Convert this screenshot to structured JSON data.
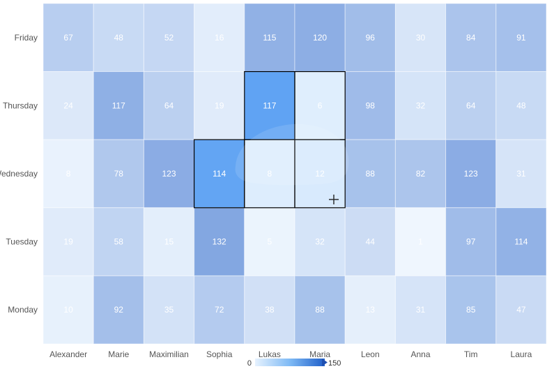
{
  "chart_data": {
    "type": "heatmap",
    "title": "",
    "xlabel": "",
    "ylabel": "",
    "x_categories": [
      "Alexander",
      "Marie",
      "Maximilian",
      "Sophia",
      "Lukas",
      "Maria",
      "Leon",
      "Anna",
      "Tim",
      "Laura"
    ],
    "y_categories": [
      "Friday",
      "Thursday",
      "Wednesday",
      "Tuesday",
      "Monday"
    ],
    "values": [
      [
        67,
        48,
        52,
        16,
        115,
        120,
        96,
        30,
        84,
        91
      ],
      [
        24,
        117,
        64,
        19,
        117,
        6,
        98,
        32,
        64,
        48
      ],
      [
        8,
        78,
        123,
        114,
        8,
        12,
        88,
        82,
        123,
        31
      ],
      [
        19,
        58,
        15,
        132,
        5,
        32,
        44,
        1,
        97,
        114
      ],
      [
        10,
        92,
        35,
        72,
        38,
        88,
        13,
        31,
        85,
        47
      ]
    ],
    "color_range": [
      0,
      150
    ],
    "colors": {
      "low": "#e6f2fe",
      "high": "#1f5fc9",
      "selected_high": "#3a8df0",
      "selection_border": "#000000"
    },
    "selected_cells": [
      {
        "y": "Thursday",
        "x": "Lukas"
      },
      {
        "y": "Thursday",
        "x": "Maria"
      },
      {
        "y": "Wednesday",
        "x": "Sophia"
      },
      {
        "y": "Wednesday",
        "x": "Lukas"
      },
      {
        "y": "Wednesday",
        "x": "Maria"
      }
    ],
    "legend": {
      "min_label": "0",
      "max_label": "150",
      "placement": "bottom-center"
    },
    "grid": false
  }
}
